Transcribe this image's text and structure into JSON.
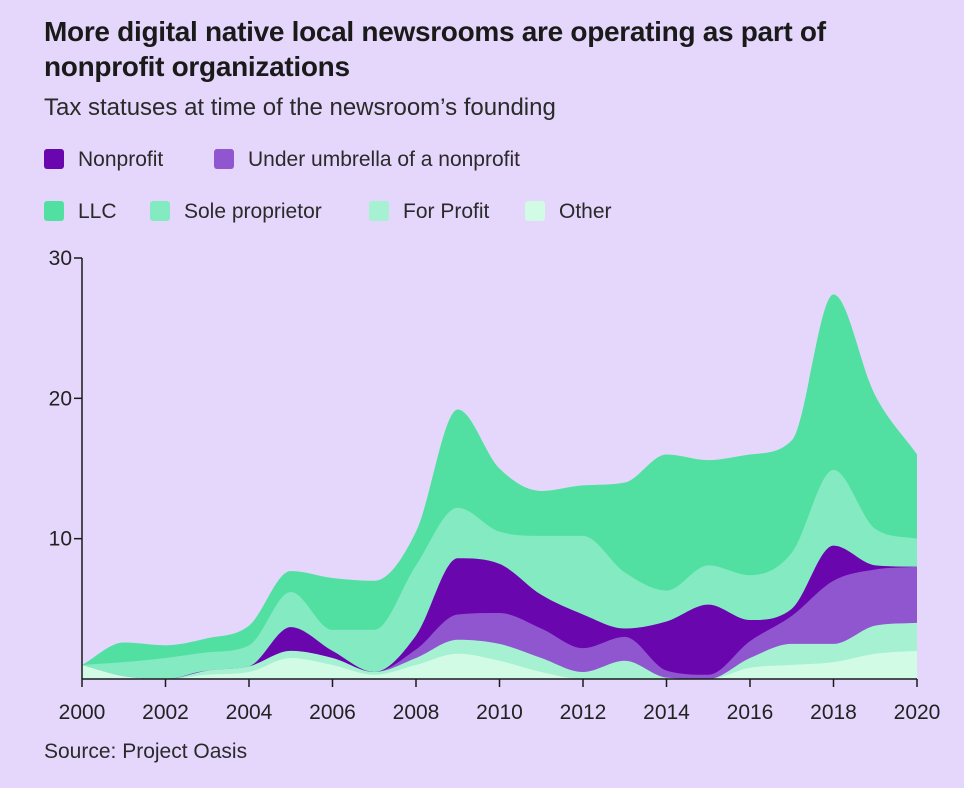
{
  "title": "More digital native local newsrooms are operating as part of nonprofit organizations",
  "subtitle": "Tax statuses at time of the newsroom’s founding",
  "source": "Source: Project Oasis",
  "legend": [
    {
      "label": "Nonprofit",
      "color": "#6a06ad"
    },
    {
      "label": "Under umbrella of a nonprofit",
      "color": "#8f56d0"
    },
    {
      "label": "LLC",
      "color": "#52e0a2"
    },
    {
      "label": "Sole proprietor",
      "color": "#84eac1"
    },
    {
      "label": "For Profit",
      "color": "#a6f1d2"
    },
    {
      "label": "Other",
      "color": "#d2fbe6"
    }
  ],
  "chart_data": {
    "type": "area",
    "stacked": true,
    "stack_order_bottom_to_top": [
      "Other",
      "For Profit",
      "Under umbrella of a nonprofit",
      "Nonprofit",
      "Sole proprietor",
      "LLC"
    ],
    "x": [
      2000,
      2001,
      2002,
      2003,
      2004,
      2005,
      2006,
      2007,
      2008,
      2009,
      2010,
      2011,
      2012,
      2013,
      2014,
      2015,
      2016,
      2017,
      2018,
      2019,
      2020
    ],
    "xticks": [
      "2000",
      "2002",
      "2004",
      "2006",
      "2008",
      "2010",
      "2012",
      "2014",
      "2016",
      "2018",
      "2020"
    ],
    "yticks": [
      "30",
      "20",
      "10"
    ],
    "ylim": [
      0,
      30
    ],
    "grid": false,
    "series": [
      {
        "name": "Other",
        "color": "#d2fbe6",
        "values": [
          1,
          0.2,
          0,
          0.3,
          0.5,
          1.5,
          1,
          0.3,
          1,
          1.8,
          1.3,
          0.5,
          0,
          0,
          0,
          0,
          0.8,
          1,
          1.2,
          1.8,
          2
        ]
      },
      {
        "name": "For Profit",
        "color": "#a6f1d2",
        "values": [
          0,
          0,
          0,
          0.3,
          0.4,
          0.5,
          0.5,
          0.2,
          0.5,
          1,
          1.2,
          1,
          0.5,
          1.3,
          0.1,
          0,
          0.7,
          1.5,
          1.3,
          2,
          2
        ]
      },
      {
        "name": "Under umbrella of a nonprofit",
        "color": "#8f56d0",
        "values": [
          0,
          0,
          0,
          0,
          0,
          0,
          0,
          0,
          0.6,
          1.8,
          2.2,
          2.1,
          1.7,
          1.7,
          0.5,
          0.3,
          1.2,
          2,
          4.5,
          4,
          4
        ]
      },
      {
        "name": "Nonprofit",
        "color": "#6a06ad",
        "values": [
          0,
          0,
          0,
          0,
          0,
          1.7,
          0.5,
          0,
          1,
          4,
          3.5,
          2.4,
          2.4,
          0.6,
          3.5,
          5,
          1.5,
          0.5,
          2.5,
          0.3,
          0
        ]
      },
      {
        "name": "Sole proprietor",
        "color": "#84eac1",
        "values": [
          0,
          1,
          1.5,
          1.3,
          1.5,
          2.5,
          1.5,
          3,
          5,
          3.6,
          2.3,
          4.2,
          5.6,
          4,
          2.2,
          2.8,
          3.2,
          4,
          5.4,
          2.6,
          2
        ]
      },
      {
        "name": "LLC",
        "color": "#52e0a2",
        "values": [
          0,
          1.4,
          0.9,
          1,
          1.4,
          1.5,
          3.7,
          3.5,
          2.4,
          7,
          4.5,
          3.2,
          3.6,
          6.4,
          9.7,
          7.5,
          8.6,
          8,
          12.5,
          9.5,
          6
        ]
      }
    ]
  }
}
